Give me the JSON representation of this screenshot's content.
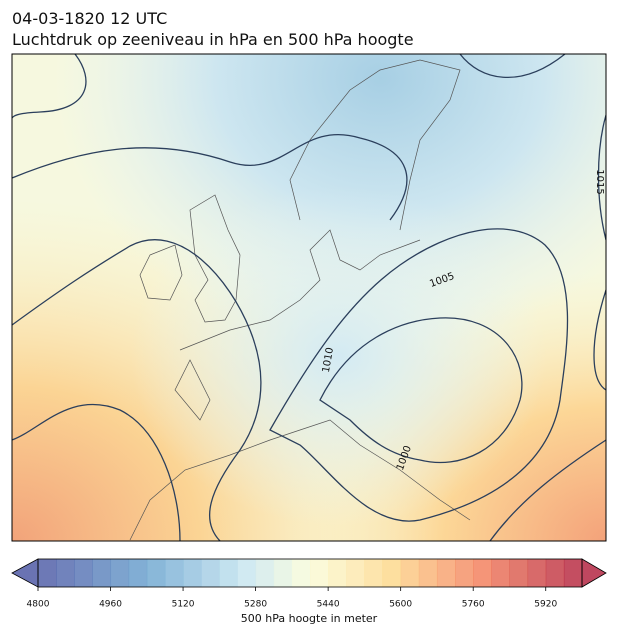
{
  "map": {
    "title": "04-03-1820 12 UTC",
    "subtitle": "Luchtdruk op zeeniveau in hPa en 500 hPa hoogte",
    "contour_labels": [
      1015,
      1005,
      1010,
      1000
    ]
  },
  "colorbar": {
    "label": "500 hPa hoogte in meter",
    "range": [
      4800,
      6000
    ],
    "ticks": [
      4800,
      4960,
      5120,
      5280,
      5440,
      5600,
      5760,
      5920
    ]
  }
}
